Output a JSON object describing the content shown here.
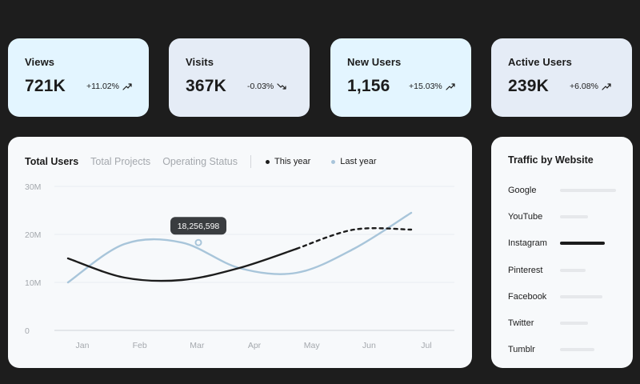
{
  "stats": [
    {
      "title": "Views",
      "value": "721K",
      "change": "+11.02%",
      "trend": "up"
    },
    {
      "title": "Visits",
      "value": "367K",
      "change": "-0.03%",
      "trend": "down"
    },
    {
      "title": "New Users",
      "value": "1,156",
      "change": "+15.03%",
      "trend": "up"
    },
    {
      "title": "Active Users",
      "value": "239K",
      "change": "+6.08%",
      "trend": "up"
    }
  ],
  "chart": {
    "tabs": [
      "Total Users",
      "Total Projects",
      "Operating Status"
    ],
    "legend": [
      {
        "label": "This year",
        "color": "#1c1c1c"
      },
      {
        "label": "Last year",
        "color": "#a8c5da"
      }
    ],
    "tooltip": "18,256,598"
  },
  "chart_data": {
    "type": "line",
    "categories": [
      "Jan",
      "Feb",
      "Mar",
      "Apr",
      "May",
      "Jun",
      "Jul"
    ],
    "y_ticks": [
      "30M",
      "20M",
      "10M",
      "0"
    ],
    "ylim": [
      0,
      30
    ],
    "series": [
      {
        "name": "This year",
        "values": [
          15,
          11,
          10.5,
          13,
          17,
          21,
          21
        ],
        "color": "#1c1c1c"
      },
      {
        "name": "Last year",
        "values": [
          10,
          18,
          18.3,
          13,
          12,
          17,
          24.5
        ],
        "color": "#a8c5da"
      }
    ],
    "highlight": {
      "series": "Last year",
      "category": "Mar",
      "value": "18,256,598"
    }
  },
  "traffic": {
    "title": "Traffic by Website",
    "sites": [
      {
        "name": "Google",
        "share": 1.0
      },
      {
        "name": "YouTube",
        "share": 0.5
      },
      {
        "name": "Instagram",
        "share": 0.8
      },
      {
        "name": "Pinterest",
        "share": 0.45
      },
      {
        "name": "Facebook",
        "share": 0.75
      },
      {
        "name": "Twitter",
        "share": 0.5
      },
      {
        "name": "Tumblr",
        "share": 0.62
      }
    ],
    "highlighted": "Instagram"
  }
}
